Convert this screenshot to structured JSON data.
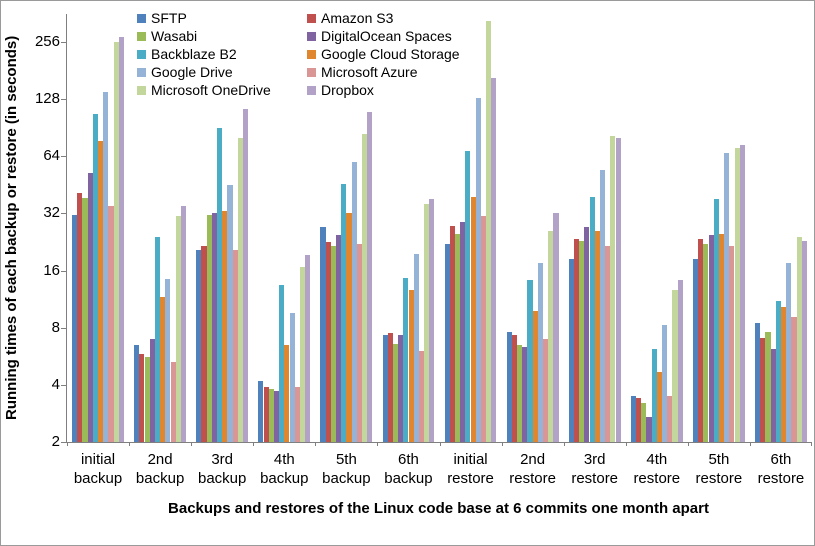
{
  "chart_data": {
    "type": "bar",
    "y_scale": "log2",
    "grid": false,
    "legend_position": "top-center, two columns",
    "title": "",
    "ylabel": "Running times of each backup or restore (in seconds)",
    "xlabel": "Backups and restores of the Linux code base at 6 commits one month apart",
    "y_ticks": [
      2,
      4,
      8,
      16,
      32,
      64,
      128,
      256
    ],
    "ylim": [
      2,
      360
    ],
    "categories": [
      "initial backup",
      "2nd backup",
      "3rd backup",
      "4th backup",
      "5th backup",
      "6th backup",
      "initial restore",
      "2nd restore",
      "3rd restore",
      "4th restore",
      "5th restore",
      "6th restore"
    ],
    "series": [
      {
        "name": "SFTP",
        "color": "#4F81BD",
        "values": [
          31.5,
          6.5,
          20.5,
          4.2,
          27,
          7.3,
          22,
          7.6,
          18.5,
          3.5,
          18.5,
          8.5
        ]
      },
      {
        "name": "Amazon S3",
        "color": "#C0504D",
        "values": [
          41,
          5.8,
          21.5,
          3.9,
          22.5,
          7.5,
          27.5,
          7.3,
          23.5,
          3.4,
          23.5,
          7.1
        ]
      },
      {
        "name": "Wasabi",
        "color": "#9BBB59",
        "values": [
          38.5,
          5.6,
          31.5,
          3.8,
          21.5,
          6.6,
          25,
          6.5,
          23,
          3.2,
          22,
          7.6
        ]
      },
      {
        "name": "DigitalOcean Spaces",
        "color": "#8064A2",
        "values": [
          52,
          7.0,
          32,
          3.7,
          24.5,
          7.3,
          29,
          6.3,
          27,
          2.7,
          24.5,
          6.2
        ]
      },
      {
        "name": "Backblaze B2",
        "color": "#4BACC6",
        "values": [
          107,
          24,
          90,
          13.4,
          46,
          14.6,
          68,
          14.2,
          39,
          6.2,
          38,
          11
        ]
      },
      {
        "name": "Google Cloud Storage",
        "color": "#E0862F",
        "values": [
          77,
          11.6,
          33,
          6.5,
          32,
          12.6,
          39,
          9.8,
          26,
          4.7,
          25,
          10.3
        ]
      },
      {
        "name": "Google Drive",
        "color": "#95B3D7",
        "values": [
          140,
          14.5,
          45,
          9.6,
          60,
          19.6,
          130,
          17.6,
          54,
          8.3,
          67,
          17.5
        ]
      },
      {
        "name": "Microsoft Azure",
        "color": "#D99694",
        "values": [
          35,
          5.3,
          20.5,
          3.9,
          22,
          6.0,
          31,
          7.0,
          21.5,
          3.5,
          21.5,
          9.1
        ]
      },
      {
        "name": "Microsoft OneDrive",
        "color": "#C3D69B",
        "values": [
          255,
          31,
          80,
          16.8,
          84,
          36,
          330,
          26,
          82,
          12.7,
          71,
          24
        ]
      },
      {
        "name": "Dropbox",
        "color": "#B3A2C7",
        "values": [
          272,
          35,
          113,
          19.3,
          110,
          38,
          165,
          32,
          80,
          14.2,
          73,
          23
        ]
      }
    ]
  }
}
